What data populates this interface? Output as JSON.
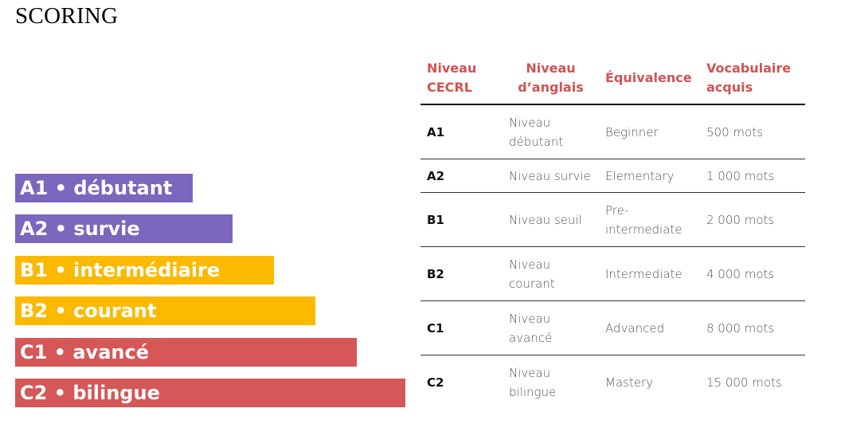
{
  "title": "SCORING",
  "bars": [
    {
      "label": "A1 • débutant"
    },
    {
      "label": "A2 • survie"
    },
    {
      "label": "B1 • intermédiaire"
    },
    {
      "label": "B2 • courant"
    },
    {
      "label": "C1 • avancé"
    },
    {
      "label": "C2 • bilingue"
    }
  ],
  "colors": {
    "purple": "#7b67be",
    "yellow": "#fbb900",
    "red": "#d55757",
    "header": "#d05252"
  },
  "table": {
    "headers": [
      "Niveau CECRL",
      "Niveau d’anglais",
      "Équivalence",
      "Vocabulaire acquis"
    ],
    "rows": [
      [
        "A1",
        "Niveau débutant",
        "Beginner",
        "500 mots"
      ],
      [
        "A2",
        "Niveau survie",
        "Elementary",
        "1 000 mots"
      ],
      [
        "B1",
        "Niveau seuil",
        "Pre-intermediate",
        "2 000 mots"
      ],
      [
        "B2",
        "Niveau courant",
        "Intermediate",
        "4 000 mots"
      ],
      [
        "C1",
        "Niveau avancé",
        "Advanced",
        "8 000 mots"
      ],
      [
        "C2",
        "Niveau bilingue",
        "Mastery",
        "15 000 mots"
      ]
    ]
  }
}
